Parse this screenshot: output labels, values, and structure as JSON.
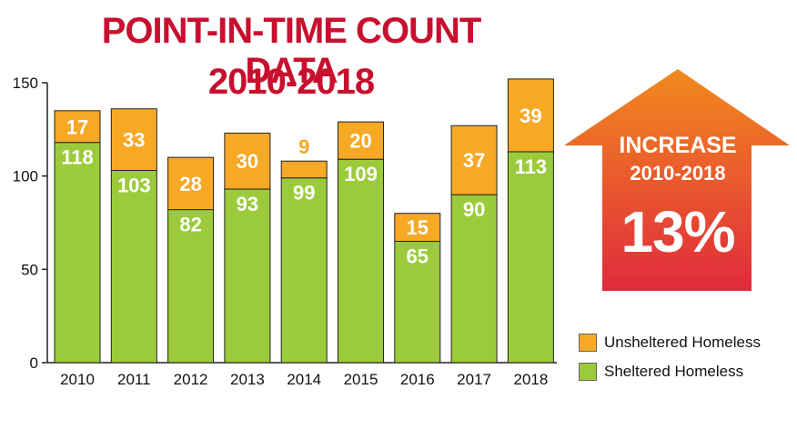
{
  "title": {
    "line1": "POINT-IN-TIME COUNT DATA",
    "line2": "2010-2018"
  },
  "callout": {
    "line1": "INCREASE",
    "line2": "2010-2018",
    "value": "13%"
  },
  "colors": {
    "title": "#c8102e",
    "sheltered": "#9bcb3b",
    "unsheltered": "#f7a824",
    "arrow_top": "#f28a1e",
    "arrow_bottom": "#e02a3c"
  },
  "chart_data": {
    "type": "bar",
    "stacked": true,
    "categories": [
      "2010",
      "2011",
      "2012",
      "2013",
      "2014",
      "2015",
      "2016",
      "2017",
      "2018"
    ],
    "series": [
      {
        "name": "Sheltered Homeless",
        "values": [
          118,
          103,
          82,
          93,
          99,
          109,
          65,
          90,
          113
        ]
      },
      {
        "name": "Unsheltered Homeless",
        "values": [
          17,
          33,
          28,
          30,
          9,
          20,
          15,
          37,
          39
        ]
      }
    ],
    "yticks": [
      0,
      50,
      100,
      150
    ],
    "ylim": [
      0,
      150
    ],
    "grid": false,
    "legend": "bottom-right"
  }
}
